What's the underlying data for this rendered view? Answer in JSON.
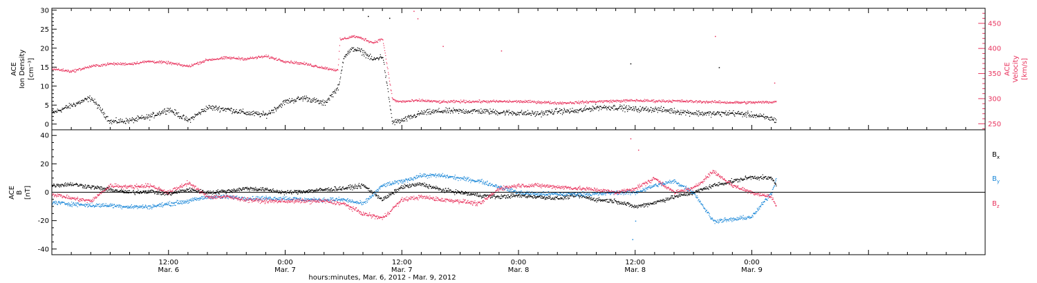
{
  "chart_data": [
    {
      "type": "scatter",
      "panel": "top",
      "left_ylabel": [
        "ACE",
        "Ion Density",
        "[cm⁻³]"
      ],
      "right_ylabel": [
        "ACE",
        "Velocity",
        "[km/s]"
      ],
      "left_ylim": [
        -1.5,
        30.5
      ],
      "left_yticks": [
        0,
        5,
        10,
        15,
        20,
        25,
        30
      ],
      "right_ylim": [
        238,
        480
      ],
      "right_yticks": [
        250,
        300,
        350,
        400,
        450
      ],
      "series": [
        {
          "axis": "left",
          "color": "#000000",
          "x_hours": [
            0,
            2,
            4,
            6,
            8,
            10,
            12,
            14,
            16,
            18,
            20,
            22,
            24,
            26,
            28,
            29.5,
            30,
            31,
            32,
            33,
            34,
            35,
            36,
            37,
            38,
            40,
            42,
            44,
            46,
            48,
            50,
            52,
            54,
            56,
            58,
            60,
            62,
            64,
            66,
            68,
            70,
            72,
            74,
            74.5
          ],
          "values": [
            3,
            5,
            7,
            0.7,
            1,
            2,
            4,
            1,
            4.5,
            4,
            3,
            2.5,
            6,
            7,
            5.5,
            10,
            18,
            20,
            19,
            17,
            18,
            0.5,
            1,
            2,
            3,
            3.5,
            3.5,
            3.5,
            3.2,
            3,
            2.8,
            3.5,
            3.5,
            4.5,
            4.5,
            4,
            4,
            3.5,
            3,
            2.8,
            3,
            2.5,
            1.5,
            1
          ]
        },
        {
          "axis": "right",
          "color": "#e8325d",
          "x_hours": [
            0,
            2,
            4,
            6,
            8,
            10,
            12,
            14,
            16,
            18,
            20,
            22,
            24,
            26,
            28,
            29.4,
            29.6,
            31,
            32,
            33,
            34,
            35,
            35.5,
            36,
            38,
            40,
            42,
            44,
            46,
            48,
            50,
            52,
            54,
            56,
            58,
            60,
            62,
            64,
            66,
            68,
            70,
            72,
            74,
            74.5
          ],
          "values": [
            360,
            355,
            365,
            370,
            370,
            375,
            372,
            365,
            378,
            382,
            380,
            385,
            375,
            370,
            362,
            357,
            418,
            425,
            420,
            412,
            420,
            300,
            295,
            295,
            297,
            294,
            295,
            295,
            295,
            295,
            294,
            292,
            293,
            295,
            296,
            297,
            296,
            296,
            295,
            294,
            293,
            293,
            294,
            295
          ]
        }
      ],
      "outliers": [
        {
          "axis": "right",
          "x_hours": 37.2,
          "value": 475
        },
        {
          "axis": "right",
          "x_hours": 37.6,
          "value": 460
        },
        {
          "axis": "right",
          "x_hours": 40.2,
          "value": 405
        },
        {
          "axis": "right",
          "x_hours": 46.2,
          "value": 396
        },
        {
          "axis": "right",
          "x_hours": 68.2,
          "value": 425
        },
        {
          "axis": "right",
          "x_hours": 74.3,
          "value": 332
        },
        {
          "axis": "left",
          "x_hours": 32.5,
          "value": 28.5
        },
        {
          "axis": "left",
          "x_hours": 34.7,
          "value": 28
        },
        {
          "axis": "left",
          "x_hours": 59.5,
          "value": 16
        },
        {
          "axis": "left",
          "x_hours": 68.6,
          "value": 15
        }
      ]
    },
    {
      "type": "scatter",
      "panel": "bottom",
      "left_ylabel": [
        "ACE",
        "B",
        "[nT]"
      ],
      "ylim": [
        -44,
        44
      ],
      "yticks": [
        -40,
        -20,
        0,
        20,
        40
      ],
      "zero_line": true,
      "series": [
        {
          "name": "Bx",
          "name_main": "B",
          "name_sub": "x",
          "color": "#000000",
          "x_hours": [
            0,
            2,
            4,
            6,
            8,
            10,
            12,
            14,
            16,
            18,
            20,
            22,
            24,
            26,
            28,
            30,
            32,
            34,
            36,
            38,
            40,
            42,
            44,
            46,
            48,
            50,
            52,
            54,
            56,
            58,
            60,
            62,
            64,
            66,
            68,
            70,
            72,
            74,
            74.5
          ],
          "values": [
            5,
            6,
            4,
            2,
            0,
            1,
            -1,
            2,
            0,
            1,
            3,
            2,
            0,
            1,
            2,
            3,
            5,
            -5,
            4,
            6,
            2,
            0,
            -2,
            -3,
            -2,
            -3,
            -4,
            -2,
            -5,
            -6,
            -10,
            -7,
            -3,
            0,
            5,
            8,
            11,
            10,
            5
          ]
        },
        {
          "name": "By",
          "name_main": "B",
          "name_sub": "y",
          "color": "#1a87d8",
          "x_hours": [
            0,
            2,
            4,
            6,
            8,
            10,
            12,
            14,
            16,
            18,
            20,
            22,
            24,
            26,
            28,
            30,
            32,
            34,
            36,
            38,
            40,
            42,
            44,
            46,
            48,
            50,
            52,
            54,
            56,
            58,
            60,
            62,
            64,
            66,
            68,
            70,
            72,
            74,
            74.5
          ],
          "values": [
            -7,
            -8,
            -9,
            -9,
            -10,
            -10,
            -8,
            -6,
            -3,
            -3,
            -4,
            -4,
            -4,
            -5,
            -5,
            -5,
            -8,
            5,
            8,
            12,
            12,
            10,
            8,
            4,
            0,
            -1,
            -1,
            -1,
            -1,
            0,
            0,
            5,
            8,
            0,
            -20,
            -19,
            -17,
            0,
            10
          ]
        },
        {
          "name": "Bz",
          "name_main": "B",
          "name_sub": "z",
          "color": "#e8325d",
          "x_hours": [
            0,
            2,
            4,
            6,
            8,
            10,
            12,
            14,
            16,
            18,
            20,
            22,
            24,
            26,
            28,
            30,
            32,
            34,
            36,
            38,
            40,
            42,
            44,
            46,
            48,
            50,
            52,
            54,
            56,
            58,
            60,
            62,
            64,
            66,
            68,
            70,
            72,
            74,
            74.5
          ],
          "values": [
            -1,
            -4,
            -6,
            5,
            4,
            5,
            0,
            7,
            -3,
            -3,
            -5,
            -6,
            -6,
            -6,
            -6,
            -8,
            -15,
            -18,
            -5,
            -3,
            -5,
            -6,
            -8,
            3,
            5,
            5,
            4,
            3,
            2,
            0,
            3,
            10,
            0,
            3,
            15,
            5,
            0,
            -3,
            -10
          ]
        }
      ],
      "outliers": [
        {
          "series": "Bz",
          "x_hours": 59.5,
          "value": 38
        },
        {
          "series": "Bz",
          "x_hours": 60.3,
          "value": 30
        },
        {
          "series": "By",
          "x_hours": 59.7,
          "value": -33
        },
        {
          "series": "By",
          "x_hours": 60.0,
          "value": -20
        }
      ]
    }
  ],
  "x_axis": {
    "title": "hours:minutes, Mar.  6, 2012 - Mar.  9, 2012",
    "range_hours": [
      0,
      96
    ],
    "minor_every_hours": 2,
    "labeled_ticks": [
      {
        "x_hours": 12,
        "time": "12:00",
        "date": "Mar. 6"
      },
      {
        "x_hours": 24,
        "time": "0:00",
        "date": "Mar. 7"
      },
      {
        "x_hours": 36,
        "time": "12:00",
        "date": "Mar. 7"
      },
      {
        "x_hours": 48,
        "time": "0:00",
        "date": "Mar. 8"
      },
      {
        "x_hours": 60,
        "time": "12:00",
        "date": "Mar. 8"
      },
      {
        "x_hours": 72,
        "time": "0:00",
        "date": "Mar. 9"
      }
    ]
  },
  "colors": {
    "axis": "#000000",
    "density": "#000000",
    "velocity": "#e8325d",
    "bx": "#000000",
    "by": "#1a87d8",
    "bz": "#e8325d"
  }
}
